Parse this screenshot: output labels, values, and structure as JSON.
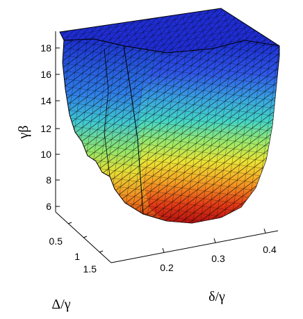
{
  "chart_data": {
    "type": "surface3d",
    "title": "",
    "zlabel": "γβ",
    "xlabel": "δ/γ",
    "ylabel": "Δ/γ",
    "z_ticks": [
      "6",
      "8",
      "10",
      "12",
      "14",
      "16",
      "18"
    ],
    "x_ticks": [
      "0.2",
      "0.3",
      "0.4"
    ],
    "y_ticks": [
      "0.5",
      "1",
      "1.5"
    ],
    "zlim": [
      5,
      19
    ],
    "xlim": [
      0.15,
      0.45
    ],
    "ylim": [
      0.3,
      1.6
    ],
    "colormap": "jet",
    "grid": false,
    "mesh_color": "#000000",
    "approx_min": {
      "x": 0.27,
      "y": 1.0,
      "z": 4.8
    },
    "approx_top": 19
  }
}
